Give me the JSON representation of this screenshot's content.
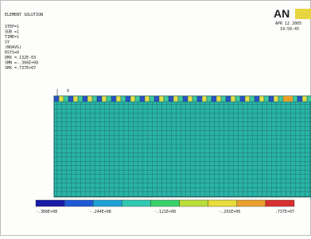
{
  "header": {
    "title": "ELEMENT SOLUTION",
    "lines": [
      "STEP=1",
      "SUB =1",
      "TIME=1",
      "SY",
      "(NOAVG)",
      "RSYS=0",
      "DMX =.132E-03",
      "SMN =-.366E+08",
      "SMX =.737E+07"
    ],
    "logo": "AN",
    "date": "APR 12 2005",
    "time": "19:50:45"
  },
  "axis_label": "X",
  "legend": {
    "labels": [
      "-.366E+08",
      "-.244E+08",
      "-.121E+08",
      "-.291E+06",
      ".737E+07"
    ]
  }
}
